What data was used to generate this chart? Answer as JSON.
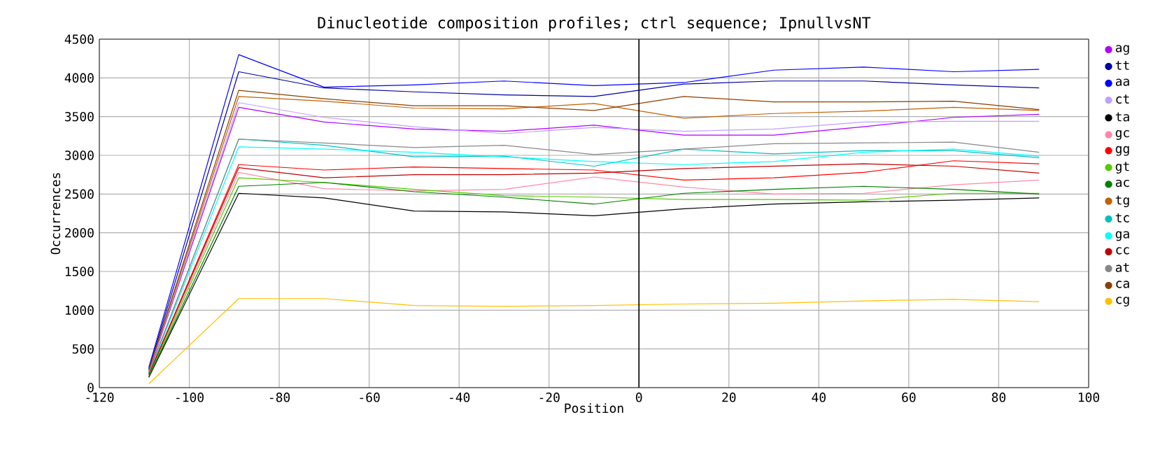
{
  "chart_data": {
    "type": "line",
    "title": "Dinucleotide composition profiles; ctrl sequence; IpnullvsNT",
    "xlabel": "Position",
    "ylabel": "Occurrences",
    "x": [
      -109,
      -89,
      -70,
      -50,
      -30,
      -10,
      10,
      30,
      50,
      70,
      89
    ],
    "xlim": [
      -120,
      100
    ],
    "xticks": [
      -120,
      -100,
      -80,
      -60,
      -40,
      -20,
      0,
      20,
      40,
      60,
      80,
      100
    ],
    "ylim": [
      0,
      4500
    ],
    "yticks": [
      0,
      500,
      1000,
      1500,
      2000,
      2500,
      3000,
      3500,
      4000,
      4500
    ],
    "grid": true,
    "legend": "right",
    "ref_lines": [
      {
        "axis": "x",
        "value": 0,
        "color": "#000000"
      }
    ],
    "series": [
      {
        "name": "ag",
        "color": "#b000ff",
        "values": [
          200,
          3620,
          3430,
          3340,
          3310,
          3390,
          3260,
          3260,
          3370,
          3490,
          3530
        ]
      },
      {
        "name": "tt",
        "color": "#0000a0",
        "values": [
          240,
          4080,
          3870,
          3820,
          3780,
          3760,
          3920,
          3960,
          3960,
          3910,
          3870
        ]
      },
      {
        "name": "aa",
        "color": "#0000ff",
        "values": [
          260,
          4300,
          3880,
          3910,
          3960,
          3900,
          3940,
          4100,
          4140,
          4080,
          4110
        ]
      },
      {
        "name": "ct",
        "color": "#c0a0ff",
        "values": [
          210,
          3680,
          3490,
          3370,
          3280,
          3360,
          3310,
          3340,
          3430,
          3440,
          3440
        ]
      },
      {
        "name": "ta",
        "color": "#000000",
        "values": [
          130,
          2510,
          2450,
          2280,
          2270,
          2220,
          2310,
          2370,
          2400,
          2420,
          2450
        ]
      },
      {
        "name": "gc",
        "color": "#ff88aa",
        "values": [
          160,
          2780,
          2570,
          2540,
          2560,
          2720,
          2590,
          2500,
          2510,
          2620,
          2680
        ]
      },
      {
        "name": "gg",
        "color": "#ff0000",
        "values": [
          170,
          2880,
          2810,
          2850,
          2830,
          2810,
          2680,
          2710,
          2780,
          2930,
          2890
        ]
      },
      {
        "name": "gt",
        "color": "#55cc00",
        "values": [
          150,
          2710,
          2650,
          2560,
          2480,
          2460,
          2430,
          2430,
          2420,
          2510,
          2510
        ]
      },
      {
        "name": "ac",
        "color": "#008000",
        "values": [
          140,
          2600,
          2650,
          2530,
          2460,
          2370,
          2510,
          2560,
          2600,
          2560,
          2500
        ]
      },
      {
        "name": "tg",
        "color": "#c06000",
        "values": [
          220,
          3760,
          3700,
          3610,
          3600,
          3670,
          3480,
          3540,
          3570,
          3620,
          3580
        ]
      },
      {
        "name": "tc",
        "color": "#00c0c0",
        "values": [
          190,
          3210,
          3130,
          2980,
          2990,
          2860,
          3080,
          3020,
          3060,
          3060,
          2970
        ]
      },
      {
        "name": "ga",
        "color": "#00ffff",
        "values": [
          180,
          3110,
          3080,
          3040,
          2980,
          2920,
          2880,
          2920,
          3040,
          3080,
          2990
        ]
      },
      {
        "name": "cc",
        "color": "#c00000",
        "values": [
          170,
          2840,
          2710,
          2750,
          2750,
          2770,
          2830,
          2860,
          2890,
          2860,
          2770
        ]
      },
      {
        "name": "at",
        "color": "#888888",
        "values": [
          190,
          3210,
          3160,
          3100,
          3130,
          3010,
          3080,
          3150,
          3160,
          3170,
          3040
        ]
      },
      {
        "name": "ca",
        "color": "#8b4000",
        "values": [
          230,
          3840,
          3730,
          3640,
          3640,
          3580,
          3760,
          3690,
          3690,
          3700,
          3590
        ]
      },
      {
        "name": "cg",
        "color": "#ffc000",
        "values": [
          50,
          1150,
          1150,
          1060,
          1050,
          1060,
          1080,
          1090,
          1120,
          1140,
          1110
        ]
      }
    ]
  }
}
